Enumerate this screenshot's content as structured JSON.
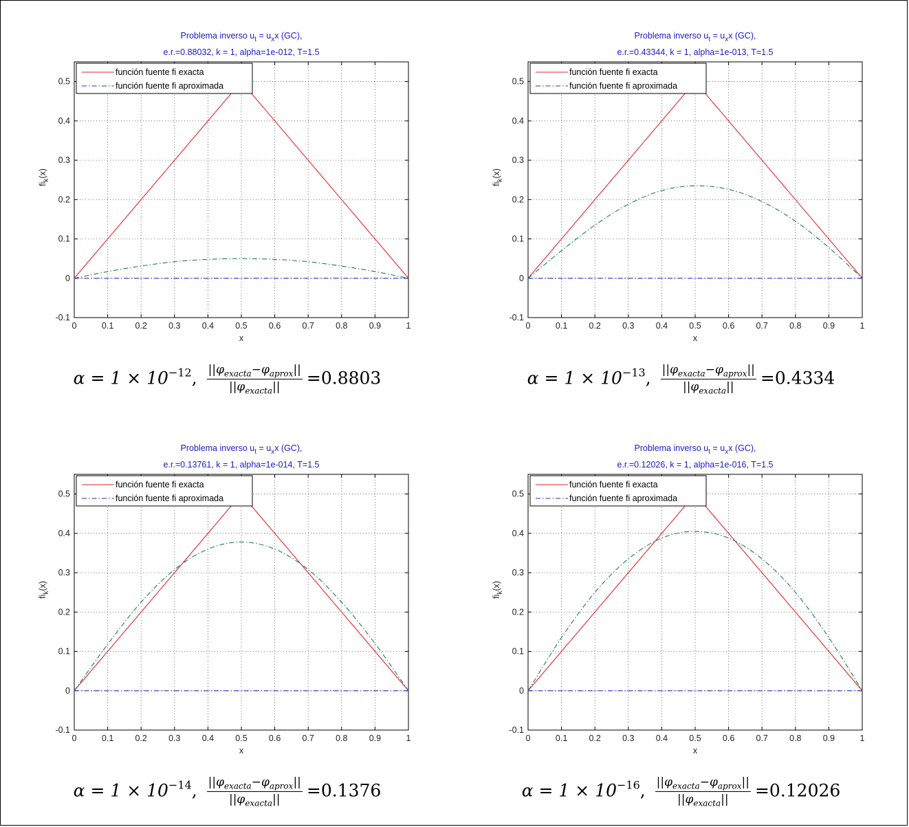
{
  "chart_data": [
    {
      "type": "line",
      "title_line1_pre": "Problema inverso u",
      "title_sub_t": "t",
      "title_mid": " = u",
      "title_sub_x": "x",
      "title_post": "x (GC),",
      "title_line2": "e.r.=0.88032, k = 1, alpha=1e-012, T=1.5",
      "xlabel": "x",
      "ylabel_main": "fi",
      "ylabel_sub": "k",
      "ylabel_post": "(x)",
      "xlim": [
        0,
        1
      ],
      "ylim": [
        -0.1,
        0.55
      ],
      "xticks": [
        "0",
        "0.1",
        "0.2",
        "0.3",
        "0.4",
        "0.5",
        "0.6",
        "0.7",
        "0.8",
        "0.9",
        "1"
      ],
      "yticks": [
        "-0.1",
        "0",
        "0.1",
        "0.2",
        "0.3",
        "0.4",
        "0.5"
      ],
      "grid": true,
      "legend": "top-left",
      "series": [
        {
          "name": "función fuente fi exacta",
          "color": "#e8262a",
          "style": "solid",
          "x": [
            0,
            0.5,
            1
          ],
          "y": [
            0,
            0.5,
            0
          ]
        },
        {
          "name": "función fuente fi aproximada",
          "color": "#2b2bd9",
          "style": "dashdot",
          "x": [
            0,
            1
          ],
          "y": [
            0,
            0
          ]
        },
        {
          "color": "#1b7a5a",
          "style": "dashdot",
          "x": [
            0,
            0.1,
            0.2,
            0.3,
            0.4,
            0.5,
            0.6,
            0.7,
            0.8,
            0.9,
            1
          ],
          "y": [
            0,
            0.017,
            0.031,
            0.042,
            0.048,
            0.05,
            0.048,
            0.042,
            0.031,
            0.017,
            0
          ]
        }
      ],
      "caption_alpha": "α = 1 × 10",
      "caption_exp": "−12",
      "caption_value": "=0.8803"
    },
    {
      "type": "line",
      "title_line1_pre": "Problema inverso u",
      "title_sub_t": "t",
      "title_mid": " = u",
      "title_sub_x": "x",
      "title_post": "x (GC),",
      "title_line2": "e.r.=0.43344, k = 1, alpha=1e-013, T=1.5",
      "xlabel": "x",
      "ylabel_main": "fi",
      "ylabel_sub": "k",
      "ylabel_post": "(x)",
      "xlim": [
        0,
        1
      ],
      "ylim": [
        -0.1,
        0.55
      ],
      "xticks": [
        "0",
        "0.1",
        "0.2",
        "0.3",
        "0.4",
        "0.5",
        "0.6",
        "0.7",
        "0.8",
        "0.9",
        "1"
      ],
      "yticks": [
        "-0.1",
        "0",
        "0.1",
        "0.2",
        "0.3",
        "0.4",
        "0.5"
      ],
      "grid": true,
      "legend": "top-left",
      "series": [
        {
          "name": "función fuente fi exacta",
          "color": "#e8262a",
          "style": "solid",
          "x": [
            0,
            0.5,
            1
          ],
          "y": [
            0,
            0.5,
            0
          ]
        },
        {
          "name": "función fuente fi aproximada",
          "color": "#2b2bd9",
          "style": "dashdot",
          "x": [
            0,
            1
          ],
          "y": [
            0,
            0
          ]
        },
        {
          "color": "#1b7a5a",
          "style": "dashdot",
          "x": [
            0,
            0.1,
            0.2,
            0.3,
            0.4,
            0.5,
            0.6,
            0.7,
            0.8,
            0.9,
            1
          ],
          "y": [
            0,
            0.07,
            0.135,
            0.188,
            0.223,
            0.235,
            0.226,
            0.195,
            0.145,
            0.078,
            0
          ]
        }
      ],
      "caption_alpha": "α = 1 × 10",
      "caption_exp": "−13",
      "caption_value": "=0.4334"
    },
    {
      "type": "line",
      "title_line1_pre": "Problema inverso u",
      "title_sub_t": "t",
      "title_mid": " = u",
      "title_sub_x": "x",
      "title_post": "x (GC),",
      "title_line2": "e.r.=0.13761, k = 1, alpha=1e-014, T=1.5",
      "xlabel": "x",
      "ylabel_main": "fi",
      "ylabel_sub": "k",
      "ylabel_post": "(x)",
      "xlim": [
        0,
        1
      ],
      "ylim": [
        -0.1,
        0.55
      ],
      "xticks": [
        "0",
        "0.1",
        "0.2",
        "0.3",
        "0.4",
        "0.5",
        "0.6",
        "0.7",
        "0.8",
        "0.9",
        "1"
      ],
      "yticks": [
        "-0.1",
        "0",
        "0.1",
        "0.2",
        "0.3",
        "0.4",
        "0.5"
      ],
      "grid": true,
      "legend": "top-left",
      "series": [
        {
          "name": "función fuente fi exacta",
          "color": "#e8262a",
          "style": "solid",
          "x": [
            0,
            0.5,
            1
          ],
          "y": [
            0,
            0.5,
            0
          ]
        },
        {
          "name": "función fuente fi aproximada",
          "color": "#2b2bd9",
          "style": "dashdot",
          "x": [
            0,
            1
          ],
          "y": [
            0,
            0
          ]
        },
        {
          "color": "#1b7a5a",
          "style": "dashdot",
          "x": [
            0,
            0.1,
            0.2,
            0.3,
            0.4,
            0.5,
            0.6,
            0.7,
            0.8,
            0.9,
            1
          ],
          "y": [
            0,
            0.118,
            0.225,
            0.308,
            0.36,
            0.378,
            0.36,
            0.308,
            0.225,
            0.12,
            0
          ]
        }
      ],
      "caption_alpha": "α = 1 × 10",
      "caption_exp": "−14",
      "caption_value": "=0.1376"
    },
    {
      "type": "line",
      "title_line1_pre": "Problema inverso u",
      "title_sub_t": "t",
      "title_mid": " = u",
      "title_sub_x": "x",
      "title_post": "x (GC),",
      "title_line2": "e.r.=0.12026, k = 1, alpha=1e-016, T=1.5",
      "xlabel": "x",
      "ylabel_main": "fi",
      "ylabel_sub": "k",
      "ylabel_post": "(x)",
      "xlim": [
        0,
        1
      ],
      "ylim": [
        -0.1,
        0.55
      ],
      "xticks": [
        "0",
        "0.1",
        "0.2",
        "0.3",
        "0.4",
        "0.5",
        "0.6",
        "0.7",
        "0.8",
        "0.9",
        "1"
      ],
      "yticks": [
        "-0.1",
        "0",
        "0.1",
        "0.2",
        "0.3",
        "0.4",
        "0.5"
      ],
      "grid": true,
      "legend": "top-left",
      "series": [
        {
          "name": "función fuente fi exacta",
          "color": "#e8262a",
          "style": "solid",
          "x": [
            0,
            0.5,
            1
          ],
          "y": [
            0,
            0.5,
            0
          ]
        },
        {
          "name": "función fuente fi aproximada",
          "color": "#2b2bd9",
          "style": "dashdot",
          "x": [
            0,
            1
          ],
          "y": [
            0,
            0
          ]
        },
        {
          "color": "#1b7a5a",
          "style": "dashdot",
          "x": [
            0,
            0.1,
            0.2,
            0.3,
            0.4,
            0.5,
            0.6,
            0.7,
            0.8,
            0.9,
            1
          ],
          "y": [
            0,
            0.135,
            0.25,
            0.335,
            0.388,
            0.405,
            0.388,
            0.335,
            0.25,
            0.135,
            0
          ]
        }
      ],
      "caption_alpha": "α = 1 × 10",
      "caption_exp": "−16",
      "caption_value": "=0.12026"
    }
  ],
  "caption_fraction": {
    "numerator": "||φ",
    "num_sub1": "exacta",
    "num_mid": "−φ",
    "num_sub2": "aprox",
    "num_end": "||",
    "denominator": "||φ",
    "den_sub": "exacta",
    "den_end": "||"
  }
}
